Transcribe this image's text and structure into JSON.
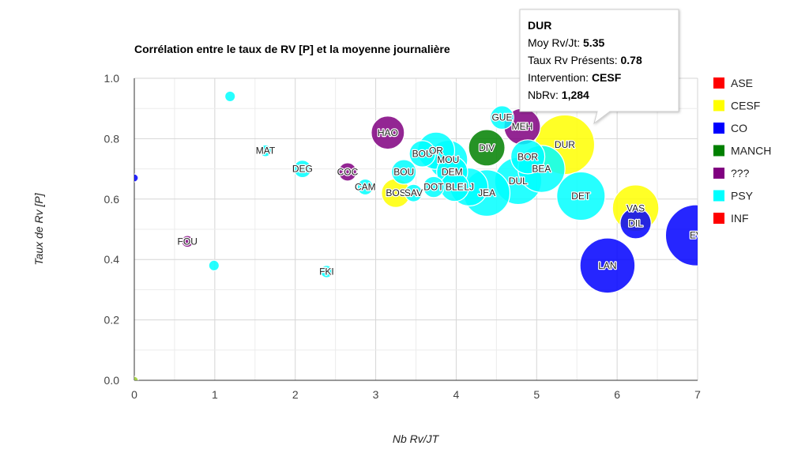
{
  "chart_data": {
    "type": "bubble",
    "title": "Corrélation entre le taux de RV [P] et la moyenne journalière",
    "xlabel": "Nb Rv/JT",
    "ylabel": "Taux de Rv [P]",
    "xlim": [
      0,
      7
    ],
    "ylim": [
      0,
      1
    ],
    "x_ticks": [
      "0",
      "1",
      "2",
      "3",
      "4",
      "5",
      "6",
      "7"
    ],
    "y_ticks": [
      "0.0",
      "0.2",
      "0.4",
      "0.6",
      "0.8",
      "1.0"
    ],
    "grid": true,
    "legend_position": "right",
    "legend": [
      {
        "label": "ASE",
        "color": "#ff0000"
      },
      {
        "label": "CESF",
        "color": "#ffff00"
      },
      {
        "label": "CO",
        "color": "#0000ff"
      },
      {
        "label": "MANCH",
        "color": "#008000"
      },
      {
        "label": "???",
        "color": "#800080"
      },
      {
        "label": "PSY",
        "color": "#00ffff"
      },
      {
        "label": "INF",
        "color": "#ff0000"
      }
    ],
    "points": [
      {
        "label": "",
        "x": 0.0,
        "y": 0.67,
        "size": 10,
        "color": "#0000ff"
      },
      {
        "label": "",
        "x": 0.0,
        "y": 0.0,
        "size": 10,
        "color": "#9acd32"
      },
      {
        "label": "FOU",
        "x": 0.66,
        "y": 0.46,
        "size": 50,
        "color": "#800080"
      },
      {
        "label": "",
        "x": 0.99,
        "y": 0.38,
        "size": 40,
        "color": "#00ffff"
      },
      {
        "label": "",
        "x": 1.19,
        "y": 0.94,
        "size": 40,
        "color": "#00ffff"
      },
      {
        "label": "MAT",
        "x": 1.63,
        "y": 0.76,
        "size": 50,
        "color": "#00ffff"
      },
      {
        "label": "DEG",
        "x": 2.09,
        "y": 0.7,
        "size": 110,
        "color": "#00ffff"
      },
      {
        "label": "FKI",
        "x": 2.39,
        "y": 0.36,
        "size": 55,
        "color": "#00ffff"
      },
      {
        "label": "COC",
        "x": 2.65,
        "y": 0.69,
        "size": 120,
        "color": "#800080"
      },
      {
        "label": "CAM",
        "x": 2.87,
        "y": 0.64,
        "size": 90,
        "color": "#00ffff"
      },
      {
        "label": "HAO",
        "x": 3.15,
        "y": 0.82,
        "size": 400,
        "color": "#800080"
      },
      {
        "label": "BOS",
        "x": 3.25,
        "y": 0.62,
        "size": 300,
        "color": "#ffff00"
      },
      {
        "label": "BOU",
        "x": 3.35,
        "y": 0.69,
        "size": 220,
        "color": "#00ffff"
      },
      {
        "label": "SAV",
        "x": 3.47,
        "y": 0.62,
        "size": 110,
        "color": "#00ffff"
      },
      {
        "label": "BOU",
        "x": 3.58,
        "y": 0.75,
        "size": 250,
        "color": "#00ffff"
      },
      {
        "label": "OR",
        "x": 3.75,
        "y": 0.76,
        "size": 500,
        "color": "#00ffff"
      },
      {
        "label": "DOT",
        "x": 3.72,
        "y": 0.64,
        "size": 160,
        "color": "#00ffff"
      },
      {
        "label": "MOU",
        "x": 3.9,
        "y": 0.73,
        "size": 550,
        "color": "#00ffff"
      },
      {
        "label": "DEM",
        "x": 3.95,
        "y": 0.69,
        "size": 350,
        "color": "#00ffff"
      },
      {
        "label": "BLE",
        "x": 3.98,
        "y": 0.64,
        "size": 300,
        "color": "#00ffff"
      },
      {
        "label": "LJ",
        "x": 4.16,
        "y": 0.64,
        "size": 520,
        "color": "#00ffff"
      },
      {
        "label": "DIV",
        "x": 4.38,
        "y": 0.77,
        "size": 480,
        "color": "#008000"
      },
      {
        "label": "JEA",
        "x": 4.38,
        "y": 0.62,
        "size": 780,
        "color": "#00ffff"
      },
      {
        "label": "GUE",
        "x": 4.57,
        "y": 0.87,
        "size": 200,
        "color": "#00ffff"
      },
      {
        "label": "MEH",
        "x": 4.82,
        "y": 0.84,
        "size": 480,
        "color": "#800080"
      },
      {
        "label": "DUL",
        "x": 4.77,
        "y": 0.66,
        "size": 800,
        "color": "#00ffff"
      },
      {
        "label": "BOR",
        "x": 4.89,
        "y": 0.74,
        "size": 420,
        "color": "#00ffff"
      },
      {
        "label": "BEA",
        "x": 5.06,
        "y": 0.7,
        "size": 800,
        "color": "#00ffff"
      },
      {
        "label": "DUR",
        "x": 5.35,
        "y": 0.78,
        "size": 1284,
        "color": "#ffff00"
      },
      {
        "label": "DET",
        "x": 5.55,
        "y": 0.61,
        "size": 850,
        "color": "#00ffff"
      },
      {
        "label": "LAN",
        "x": 5.88,
        "y": 0.38,
        "size": 1100,
        "color": "#0000ff"
      },
      {
        "label": "VAS",
        "x": 6.23,
        "y": 0.57,
        "size": 780,
        "color": "#ffff00"
      },
      {
        "label": "DIL",
        "x": 6.23,
        "y": 0.52,
        "size": 350,
        "color": "#0000ff"
      },
      {
        "label": "EV",
        "x": 6.98,
        "y": 0.48,
        "size": 1350,
        "color": "#0000ff"
      }
    ],
    "tooltip": {
      "name": "DUR",
      "lines": [
        {
          "label": "Moy Rv/Jt: ",
          "value": "5.35"
        },
        {
          "label": "Taux Rv Présents: ",
          "value": "0.78"
        },
        {
          "label": "Intervention: ",
          "value": "CESF"
        },
        {
          "label": "NbRv: ",
          "value": "1,284"
        }
      ]
    }
  }
}
